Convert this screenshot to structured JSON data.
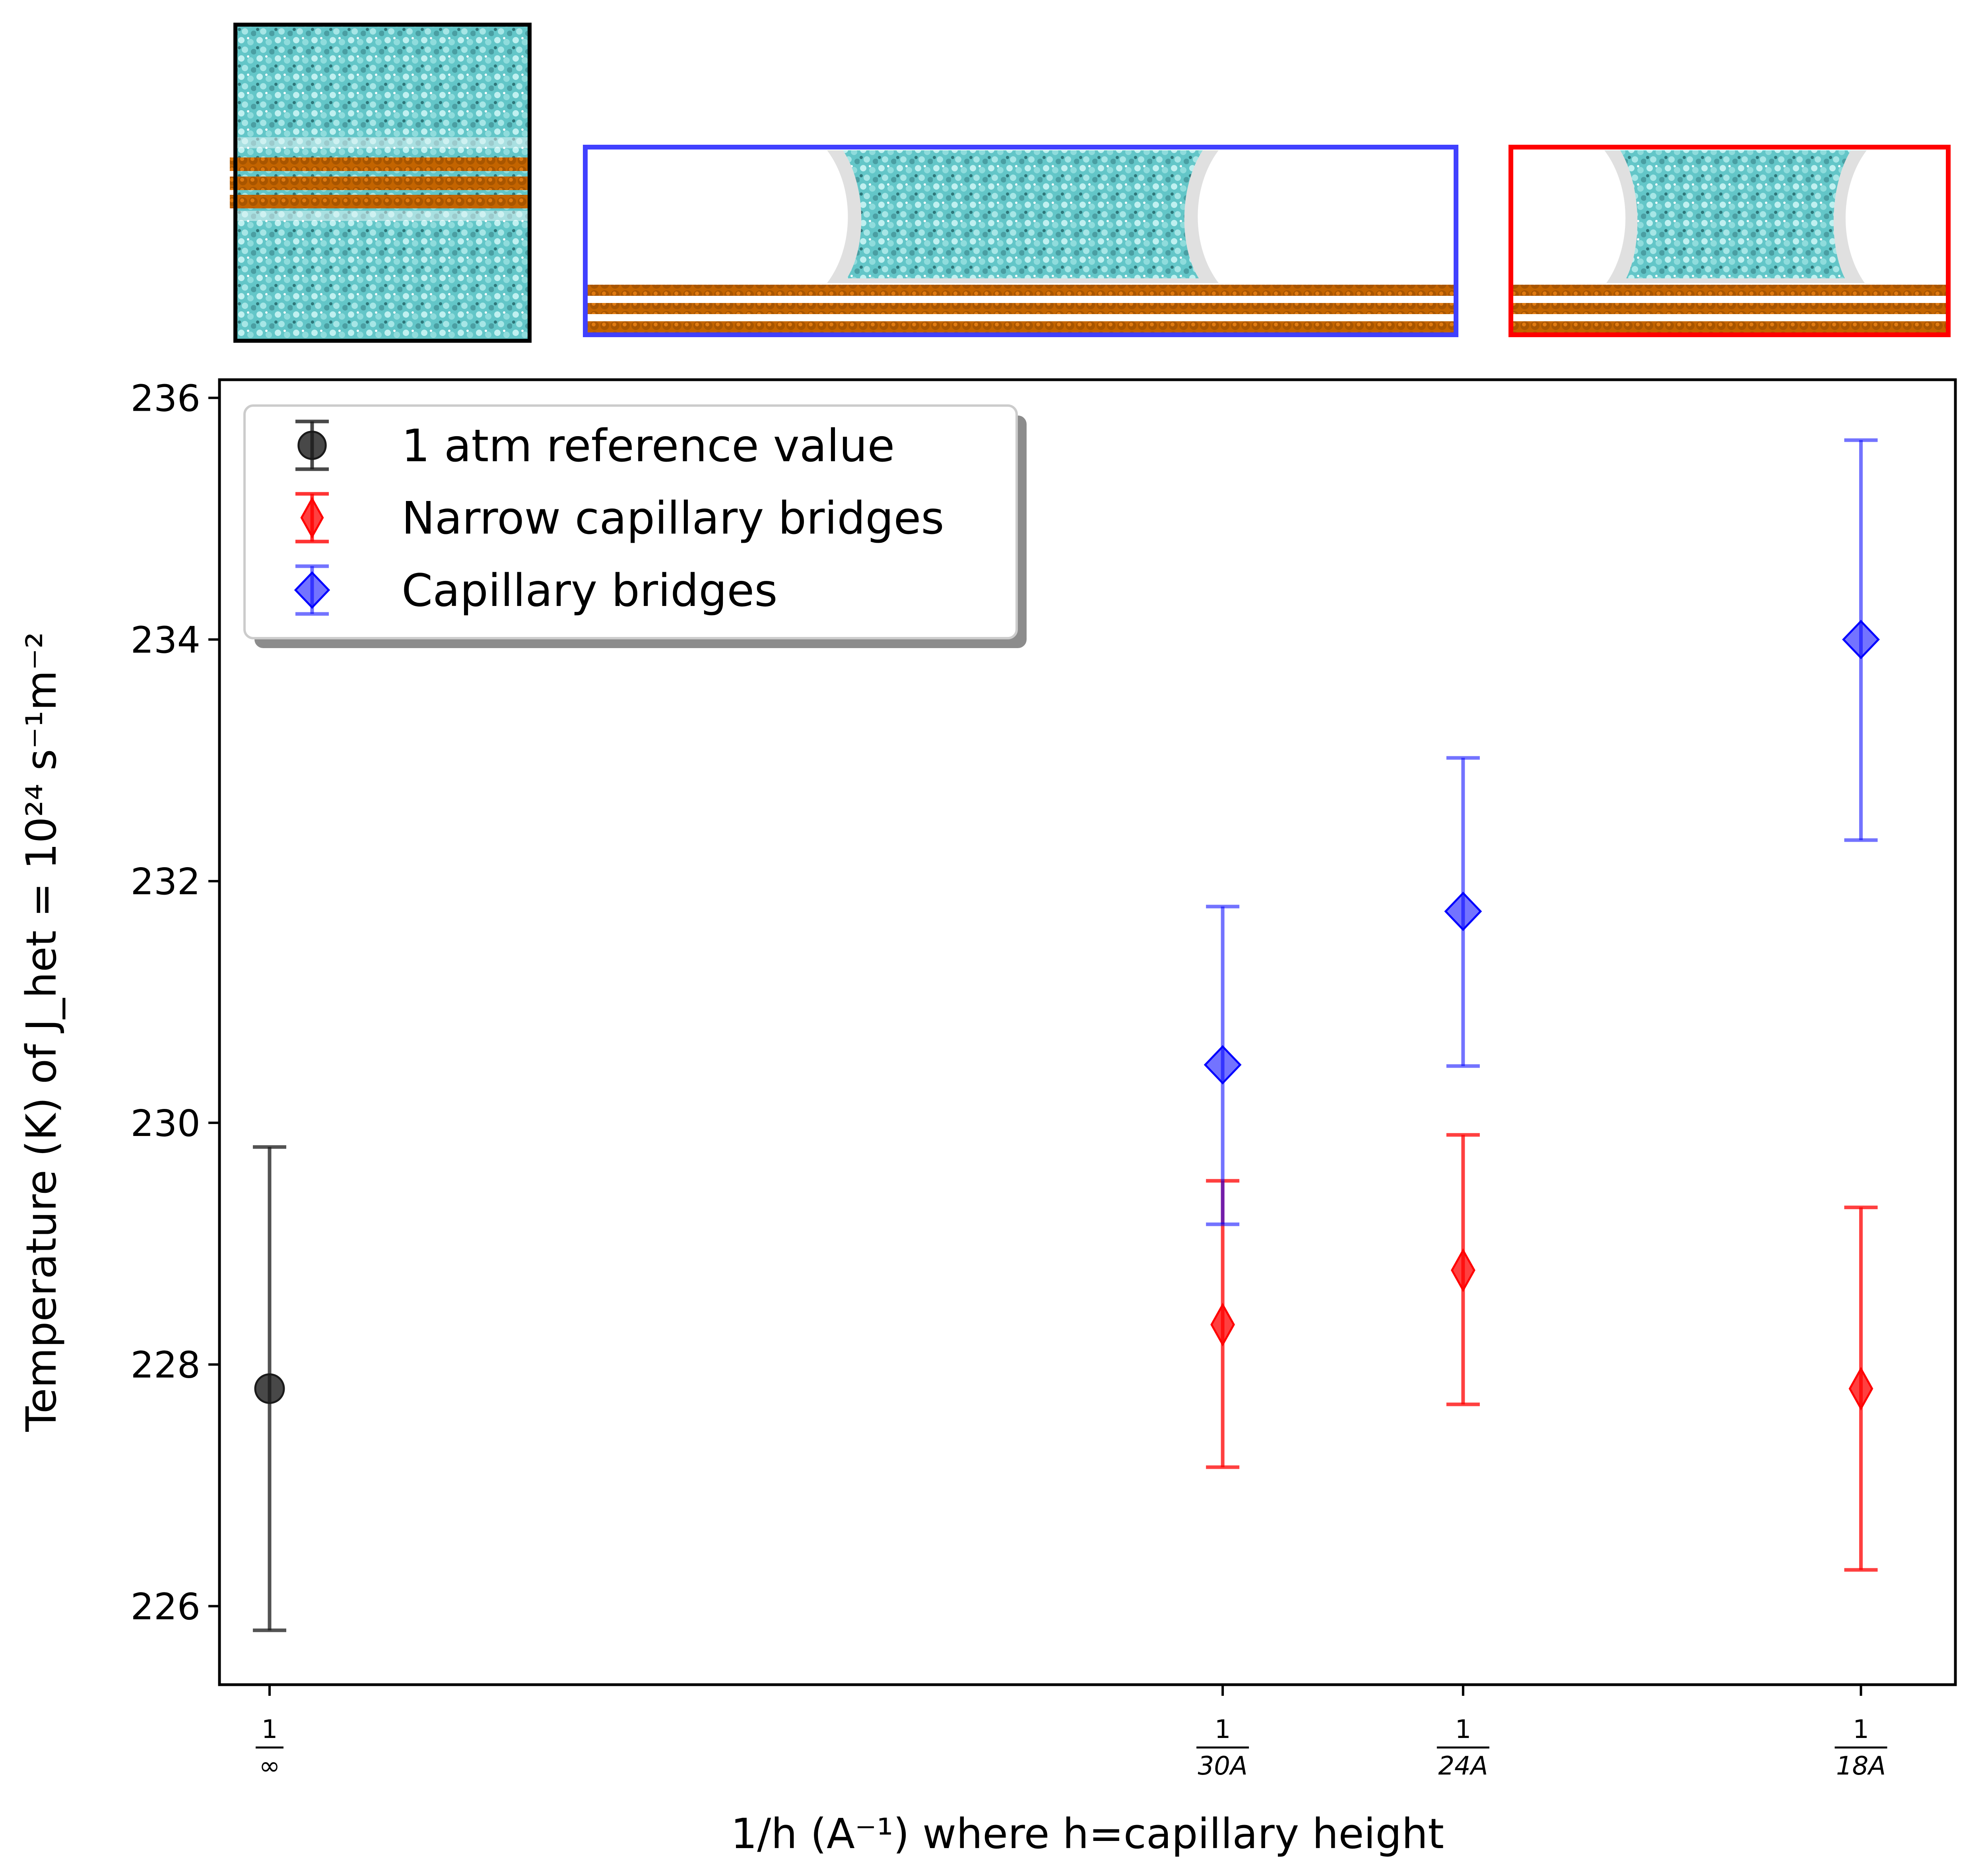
{
  "chart_data": {
    "type": "scatter",
    "xlabel": "1/h (A⁻¹) where h=capillary height",
    "ylabel": "Temperature (K) of J_het = 10²⁴ s⁻¹m⁻²",
    "ylim": [
      225.35,
      236.15
    ],
    "yticks": [
      226,
      228,
      230,
      232,
      234,
      236
    ],
    "x_axis_scale": "reciprocal capillary height",
    "xlim_inverse_angstrom": [
      -0.00175,
      0.0589
    ],
    "xtick_labels": [
      {
        "value_inverse_angstrom": 0.0,
        "num": "1",
        "den": "∞"
      },
      {
        "value_inverse_angstrom": 0.0333,
        "num": "1",
        "den": "30A"
      },
      {
        "value_inverse_angstrom": 0.0417,
        "num": "1",
        "den": "24A"
      },
      {
        "value_inverse_angstrom": 0.0556,
        "num": "1",
        "den": "18A"
      }
    ],
    "legend_position": "top-left",
    "legend": [
      "1 atm reference value",
      "Narrow capillary bridges",
      "Capillary bridges"
    ],
    "series": [
      {
        "name": "1 atm reference value",
        "color": "#1a1a1a",
        "marker": "circle",
        "points": [
          {
            "x_label": "1/∞",
            "x": 0.0,
            "y": 227.8,
            "ylow": 225.8,
            "yhigh": 229.8
          }
        ]
      },
      {
        "name": "Narrow capillary bridges",
        "color": "#ff0000",
        "marker": "thin-diamond",
        "points": [
          {
            "x_label": "1/30A",
            "x": 0.0333,
            "y": 228.33,
            "ylow": 227.15,
            "yhigh": 229.52
          },
          {
            "x_label": "1/24A",
            "x": 0.0417,
            "y": 228.78,
            "ylow": 227.67,
            "yhigh": 229.9
          },
          {
            "x_label": "1/18A",
            "x": 0.0556,
            "y": 227.8,
            "ylow": 226.3,
            "yhigh": 229.3
          }
        ]
      },
      {
        "name": "Capillary bridges",
        "color": "#0000ff",
        "marker": "diamond",
        "points": [
          {
            "x_label": "1/30A",
            "x": 0.0333,
            "y": 230.48,
            "ylow": 229.16,
            "yhigh": 231.79
          },
          {
            "x_label": "1/24A",
            "x": 0.0417,
            "y": 231.75,
            "ylow": 230.47,
            "yhigh": 233.02
          },
          {
            "x_label": "1/18A",
            "x": 0.0556,
            "y": 234.0,
            "ylow": 232.34,
            "yhigh": 235.65
          }
        ]
      }
    ]
  },
  "insets": [
    {
      "name": "bulk reference",
      "frame_color": "#000000"
    },
    {
      "name": "capillary bridge",
      "frame_color": "#4040ff"
    },
    {
      "name": "narrow capillary bridge",
      "frame_color": "#ff0000"
    }
  ],
  "colors": {
    "water": "#63c6c8",
    "water_dark": "#3d8e92",
    "surface": "#c36400",
    "surface_dark": "#7a3a00"
  }
}
